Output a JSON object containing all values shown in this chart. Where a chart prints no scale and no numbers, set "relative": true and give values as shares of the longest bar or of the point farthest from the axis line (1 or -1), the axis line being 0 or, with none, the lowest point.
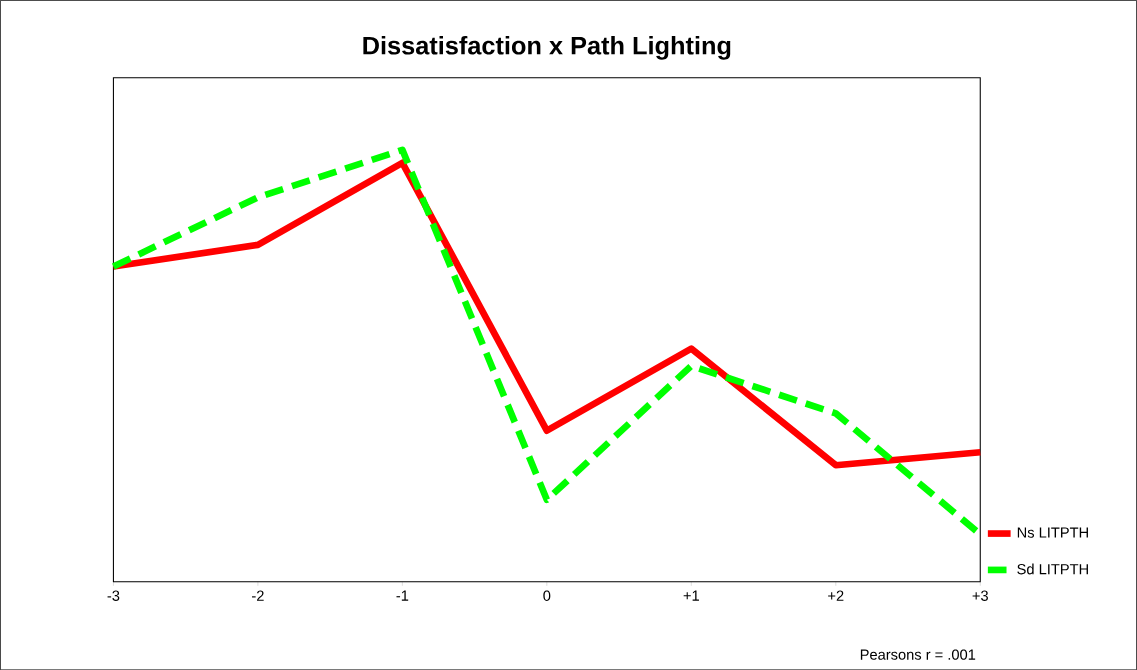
{
  "chart_data": {
    "type": "line",
    "title": "Dissatisfaction  x  Path Lighting",
    "relative": true,
    "categories": [
      "-3",
      "-2",
      "-1",
      "0",
      "+1",
      "+2",
      "+3"
    ],
    "series": [
      {
        "name": "Ns LITPTH",
        "color": "#ff0000",
        "line_style": "solid",
        "values": [
          0.73,
          0.78,
          0.97,
          0.35,
          0.54,
          0.27,
          0.3
        ]
      },
      {
        "name": "Sd LITPTH",
        "color": "#00ff00",
        "line_style": "dashed",
        "values": [
          0.73,
          0.89,
          1,
          0.19,
          0.5,
          0.39,
          0.11
        ]
      }
    ],
    "legend": "right",
    "marker": "none",
    "annotations": [
      "Pearsons r = .001"
    ]
  }
}
